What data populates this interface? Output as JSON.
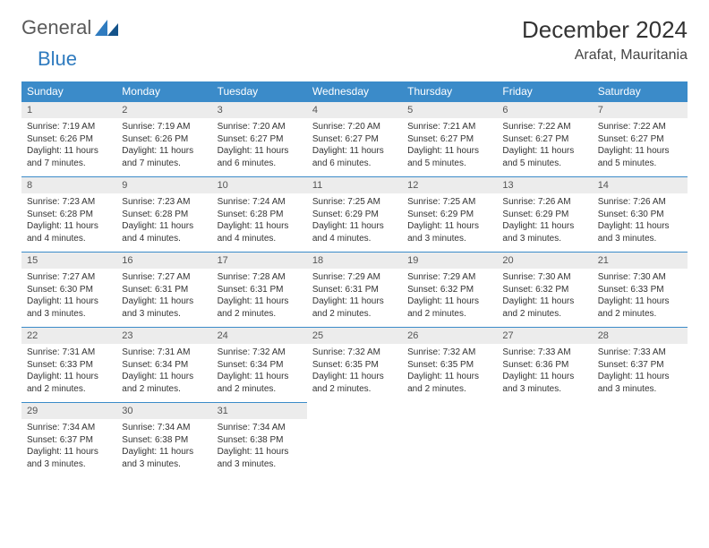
{
  "logo": {
    "general": "General",
    "blue": "Blue"
  },
  "title": "December 2024",
  "location": "Arafat, Mauritania",
  "colors": {
    "header_bg": "#3b8bc9",
    "header_text": "#ffffff",
    "daynum_bg": "#ececec",
    "border": "#3b8bc9",
    "logo_gray": "#5a5a5a",
    "logo_blue": "#2f7bbf"
  },
  "weekdays": [
    "Sunday",
    "Monday",
    "Tuesday",
    "Wednesday",
    "Thursday",
    "Friday",
    "Saturday"
  ],
  "weeks": [
    [
      {
        "n": "1",
        "sr": "7:19 AM",
        "ss": "6:26 PM",
        "dl": "11 hours and 7 minutes."
      },
      {
        "n": "2",
        "sr": "7:19 AM",
        "ss": "6:26 PM",
        "dl": "11 hours and 7 minutes."
      },
      {
        "n": "3",
        "sr": "7:20 AM",
        "ss": "6:27 PM",
        "dl": "11 hours and 6 minutes."
      },
      {
        "n": "4",
        "sr": "7:20 AM",
        "ss": "6:27 PM",
        "dl": "11 hours and 6 minutes."
      },
      {
        "n": "5",
        "sr": "7:21 AM",
        "ss": "6:27 PM",
        "dl": "11 hours and 5 minutes."
      },
      {
        "n": "6",
        "sr": "7:22 AM",
        "ss": "6:27 PM",
        "dl": "11 hours and 5 minutes."
      },
      {
        "n": "7",
        "sr": "7:22 AM",
        "ss": "6:27 PM",
        "dl": "11 hours and 5 minutes."
      }
    ],
    [
      {
        "n": "8",
        "sr": "7:23 AM",
        "ss": "6:28 PM",
        "dl": "11 hours and 4 minutes."
      },
      {
        "n": "9",
        "sr": "7:23 AM",
        "ss": "6:28 PM",
        "dl": "11 hours and 4 minutes."
      },
      {
        "n": "10",
        "sr": "7:24 AM",
        "ss": "6:28 PM",
        "dl": "11 hours and 4 minutes."
      },
      {
        "n": "11",
        "sr": "7:25 AM",
        "ss": "6:29 PM",
        "dl": "11 hours and 4 minutes."
      },
      {
        "n": "12",
        "sr": "7:25 AM",
        "ss": "6:29 PM",
        "dl": "11 hours and 3 minutes."
      },
      {
        "n": "13",
        "sr": "7:26 AM",
        "ss": "6:29 PM",
        "dl": "11 hours and 3 minutes."
      },
      {
        "n": "14",
        "sr": "7:26 AM",
        "ss": "6:30 PM",
        "dl": "11 hours and 3 minutes."
      }
    ],
    [
      {
        "n": "15",
        "sr": "7:27 AM",
        "ss": "6:30 PM",
        "dl": "11 hours and 3 minutes."
      },
      {
        "n": "16",
        "sr": "7:27 AM",
        "ss": "6:31 PM",
        "dl": "11 hours and 3 minutes."
      },
      {
        "n": "17",
        "sr": "7:28 AM",
        "ss": "6:31 PM",
        "dl": "11 hours and 2 minutes."
      },
      {
        "n": "18",
        "sr": "7:29 AM",
        "ss": "6:31 PM",
        "dl": "11 hours and 2 minutes."
      },
      {
        "n": "19",
        "sr": "7:29 AM",
        "ss": "6:32 PM",
        "dl": "11 hours and 2 minutes."
      },
      {
        "n": "20",
        "sr": "7:30 AM",
        "ss": "6:32 PM",
        "dl": "11 hours and 2 minutes."
      },
      {
        "n": "21",
        "sr": "7:30 AM",
        "ss": "6:33 PM",
        "dl": "11 hours and 2 minutes."
      }
    ],
    [
      {
        "n": "22",
        "sr": "7:31 AM",
        "ss": "6:33 PM",
        "dl": "11 hours and 2 minutes."
      },
      {
        "n": "23",
        "sr": "7:31 AM",
        "ss": "6:34 PM",
        "dl": "11 hours and 2 minutes."
      },
      {
        "n": "24",
        "sr": "7:32 AM",
        "ss": "6:34 PM",
        "dl": "11 hours and 2 minutes."
      },
      {
        "n": "25",
        "sr": "7:32 AM",
        "ss": "6:35 PM",
        "dl": "11 hours and 2 minutes."
      },
      {
        "n": "26",
        "sr": "7:32 AM",
        "ss": "6:35 PM",
        "dl": "11 hours and 2 minutes."
      },
      {
        "n": "27",
        "sr": "7:33 AM",
        "ss": "6:36 PM",
        "dl": "11 hours and 3 minutes."
      },
      {
        "n": "28",
        "sr": "7:33 AM",
        "ss": "6:37 PM",
        "dl": "11 hours and 3 minutes."
      }
    ],
    [
      {
        "n": "29",
        "sr": "7:34 AM",
        "ss": "6:37 PM",
        "dl": "11 hours and 3 minutes."
      },
      {
        "n": "30",
        "sr": "7:34 AM",
        "ss": "6:38 PM",
        "dl": "11 hours and 3 minutes."
      },
      {
        "n": "31",
        "sr": "7:34 AM",
        "ss": "6:38 PM",
        "dl": "11 hours and 3 minutes."
      },
      null,
      null,
      null,
      null
    ]
  ],
  "labels": {
    "sunrise": "Sunrise:",
    "sunset": "Sunset:",
    "daylight": "Daylight:"
  }
}
